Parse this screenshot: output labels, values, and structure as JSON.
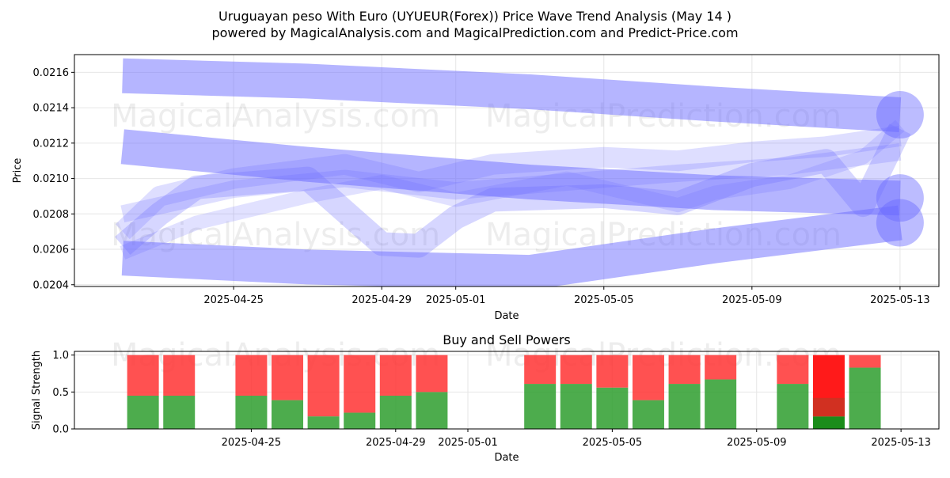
{
  "title_line1": "Uruguayan peso With Euro (UYUEUR(Forex)) Price Wave Trend Analysis (May 14 )",
  "title_line2": "powered by MagicalAnalysis.com and MagicalPrediction.com and Predict-Price.com",
  "watermarks": [
    "MagicalAnalysis.com",
    "MagicalPrediction.com"
  ],
  "colors": {
    "band": "#6b6bff",
    "buy": "#2e9e2e",
    "sell": "#ff3333",
    "buy_strong": "#1a8c1a",
    "sell_strong": "#ff1a1a"
  },
  "chart_data": [
    {
      "type": "area",
      "title": "",
      "xlabel": "Date",
      "ylabel": "Price",
      "xlim": [
        "2025-04-21",
        "2025-05-13"
      ],
      "ylim": [
        0.02039,
        0.0217
      ],
      "yticks": [
        0.0204,
        0.0206,
        0.0208,
        0.021,
        0.0212,
        0.0214,
        0.0216
      ],
      "yticklabels": [
        "0.0204",
        "0.0206",
        "0.0208",
        "0.0210",
        "0.0212",
        "0.0214",
        "0.0216"
      ],
      "xticks": [
        "2025-04-25",
        "2025-04-29",
        "2025-05-01",
        "2025-05-05",
        "2025-05-09",
        "2025-05-13"
      ],
      "grid": true,
      "series": [
        {
          "x": [
            "2025-04-22",
            "2025-04-27",
            "2025-05-03",
            "2025-05-08",
            "2025-05-13"
          ],
          "values": [
            0.02158,
            0.02155,
            0.02149,
            0.02142,
            0.02136
          ]
        },
        {
          "x": [
            "2025-04-22",
            "2025-04-27",
            "2025-05-03",
            "2025-05-08",
            "2025-05-13"
          ],
          "values": [
            0.02118,
            0.02108,
            0.02098,
            0.02092,
            0.02089
          ]
        },
        {
          "x": [
            "2025-04-22",
            "2025-04-27",
            "2025-05-03",
            "2025-05-08",
            "2025-05-13"
          ],
          "values": [
            0.02055,
            0.0205,
            0.02047,
            0.02062,
            0.02075
          ]
        },
        {
          "x": [
            "2025-04-22",
            "2025-04-23",
            "2025-04-24",
            "2025-04-27",
            "2025-04-29",
            "2025-04-30",
            "2025-05-01",
            "2025-05-02",
            "2025-05-05",
            "2025-05-06",
            "2025-05-07",
            "2025-05-08",
            "2025-05-09",
            "2025-05-11",
            "2025-05-12",
            "2025-05-13"
          ],
          "values": [
            0.02062,
            0.0208,
            0.02095,
            0.021,
            0.02063,
            0.02062,
            0.02078,
            0.02088,
            0.0209,
            0.02088,
            0.02086,
            0.02094,
            0.02102,
            0.0211,
            0.02085,
            0.02128
          ]
        },
        {
          "x": [
            "2025-04-22",
            "2025-04-23",
            "2025-04-25",
            "2025-04-28",
            "2025-04-30",
            "2025-05-02",
            "2025-05-05",
            "2025-05-07",
            "2025-05-09",
            "2025-05-11",
            "2025-05-13"
          ],
          "values": [
            0.0207,
            0.0209,
            0.021,
            0.02108,
            0.02098,
            0.02108,
            0.02112,
            0.0211,
            0.02115,
            0.02118,
            0.02124
          ]
        },
        {
          "x": [
            "2025-04-22",
            "2025-04-25",
            "2025-04-28",
            "2025-05-01",
            "2025-05-04",
            "2025-05-07",
            "2025-05-10",
            "2025-05-13"
          ],
          "values": [
            0.0208,
            0.02094,
            0.021,
            0.02093,
            0.02098,
            0.02103,
            0.02107,
            0.02115
          ]
        },
        {
          "x": [
            "2025-04-22",
            "2025-04-24",
            "2025-04-27",
            "2025-04-29",
            "2025-05-01",
            "2025-05-04",
            "2025-05-07",
            "2025-05-08",
            "2025-05-10",
            "2025-05-12",
            "2025-05-13"
          ],
          "values": [
            0.02058,
            0.02075,
            0.0209,
            0.02098,
            0.02088,
            0.021,
            0.02085,
            0.02092,
            0.02098,
            0.02112,
            0.0213
          ]
        }
      ]
    },
    {
      "type": "bar",
      "title": "Buy and Sell Powers",
      "xlabel": "Date",
      "ylabel": "Signal Strength",
      "ylim": [
        0,
        1.05
      ],
      "yticks": [
        0.0,
        0.5,
        1.0
      ],
      "yticklabels": [
        "0.0",
        "0.5",
        "1.0"
      ],
      "xticks": [
        "2025-04-25",
        "2025-04-29",
        "2025-05-01",
        "2025-05-05",
        "2025-05-09",
        "2025-05-13"
      ],
      "categories": [
        "2025-04-22",
        "2025-04-23",
        "2025-04-25",
        "2025-04-26",
        "2025-04-27",
        "2025-04-28",
        "2025-04-29",
        "2025-04-30",
        "2025-05-03",
        "2025-05-04",
        "2025-05-05",
        "2025-05-06",
        "2025-05-07",
        "2025-05-08",
        "2025-05-10",
        "2025-05-11",
        "2025-05-12"
      ],
      "series": [
        {
          "name": "Buy",
          "values": [
            0.45,
            0.45,
            0.45,
            0.39,
            0.17,
            0.22,
            0.45,
            0.5,
            0.61,
            0.61,
            0.56,
            0.39,
            0.61,
            0.67,
            0.61,
            0.17,
            0.83
          ]
        },
        {
          "name": "Sell",
          "values": [
            0.55,
            0.55,
            0.55,
            0.61,
            0.83,
            0.78,
            0.55,
            0.5,
            0.39,
            0.39,
            0.44,
            0.61,
            0.39,
            0.33,
            0.39,
            0.83,
            0.17
          ]
        }
      ],
      "highlight_index": 15
    }
  ]
}
